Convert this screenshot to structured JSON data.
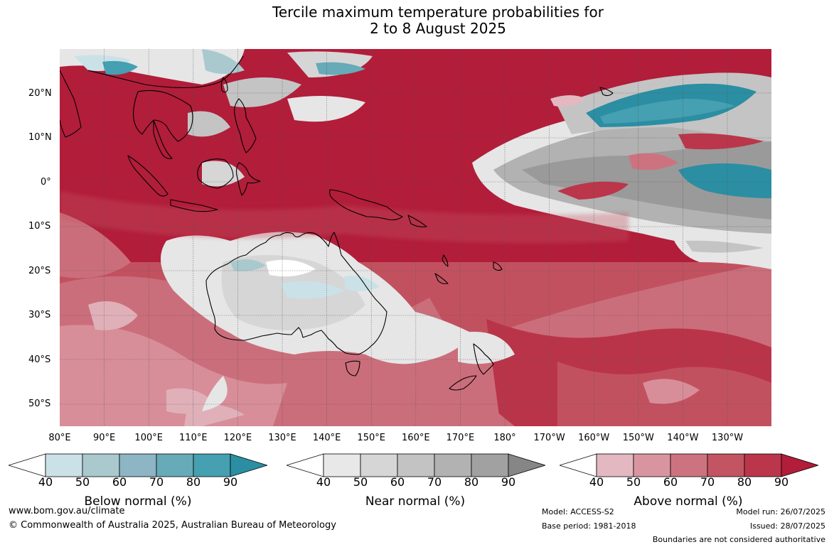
{
  "title_line1": "Tercile maximum temperature probabilities for",
  "title_line2": "2 to 8 August 2025",
  "lat_labels": [
    "20°N",
    "10°N",
    "0°",
    "10°S",
    "20°S",
    "30°S",
    "40°S",
    "50°S"
  ],
  "lon_labels": [
    "80°E",
    "90°E",
    "100°E",
    "110°E",
    "120°E",
    "130°E",
    "140°E",
    "150°E",
    "160°E",
    "170°E",
    "180°",
    "170°W",
    "160°W",
    "150°W",
    "140°W",
    "130°W"
  ],
  "colorbars": [
    {
      "name": "Below normal (%)",
      "ticks": [
        "40",
        "50",
        "60",
        "70",
        "80",
        "90"
      ],
      "colors": [
        "#ffffff",
        "#cbe1e8",
        "#a9c9cf",
        "#8db5c4",
        "#67aab8",
        "#45a0b1",
        "#2b8ea3"
      ]
    },
    {
      "name": "Near normal (%)",
      "ticks": [
        "40",
        "50",
        "60",
        "70",
        "80",
        "90"
      ],
      "colors": [
        "#ffffff",
        "#e8e8e8",
        "#d6d6d6",
        "#c3c3c3",
        "#b2b2b2",
        "#a1a1a1",
        "#868686"
      ]
    },
    {
      "name": "Above normal (%)",
      "ticks": [
        "40",
        "50",
        "60",
        "70",
        "80",
        "90"
      ],
      "colors": [
        "#ffffff",
        "#e3b8c0",
        "#d9959f",
        "#cd737f",
        "#c35462",
        "#bb364a",
        "#b21d3a"
      ]
    }
  ],
  "footer": {
    "url": "www.bom.gov.au/climate",
    "copyright": "© Commonwealth of Australia 2025, Australian Bureau of Meteorology",
    "model": "Model: ACCESS-S2",
    "base_period": "Base period: 1981-2018",
    "model_run": "Model run: 26/07/2025",
    "issued": "Issued: 28/07/2025",
    "boundaries": "Boundaries are not considered authoritative"
  },
  "map_colors": {
    "above_90": "#b21d3a",
    "above_80": "#bb364a",
    "above_70": "#c35462",
    "above_60": "#cd737f",
    "above_50": "#d9959f",
    "near_light": "#e6e6e6",
    "near_mid": "#c4c4c4",
    "near_dark": "#9a9a9a",
    "below_light": "#cbe1e8",
    "below_dark": "#2b8ea3"
  }
}
